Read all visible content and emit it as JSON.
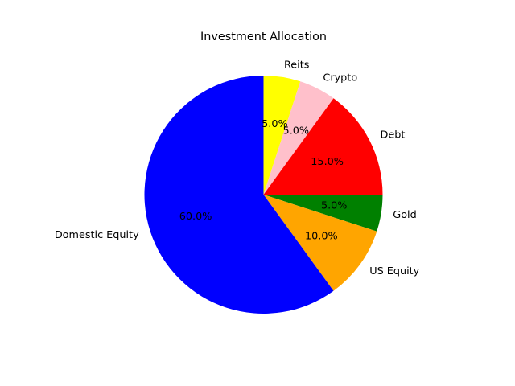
{
  "chart_data": {
    "type": "pie",
    "title": "Investment Allocation",
    "start_angle_deg": 90,
    "direction": "clockwise",
    "slices": [
      {
        "label": "Reits",
        "value": 5.0,
        "pct_label": "5.0%",
        "color": "#ffff00"
      },
      {
        "label": "Crypto",
        "value": 5.0,
        "pct_label": "5.0%",
        "color": "#ffc0cb"
      },
      {
        "label": "Debt",
        "value": 15.0,
        "pct_label": "15.0%",
        "color": "#ff0000"
      },
      {
        "label": "Gold",
        "value": 5.0,
        "pct_label": "5.0%",
        "color": "#008000"
      },
      {
        "label": "US Equity",
        "value": 10.0,
        "pct_label": "10.0%",
        "color": "#ffa500"
      },
      {
        "label": "Domestic Equity",
        "value": 60.0,
        "pct_label": "60.0%",
        "color": "#0000ff"
      }
    ]
  }
}
